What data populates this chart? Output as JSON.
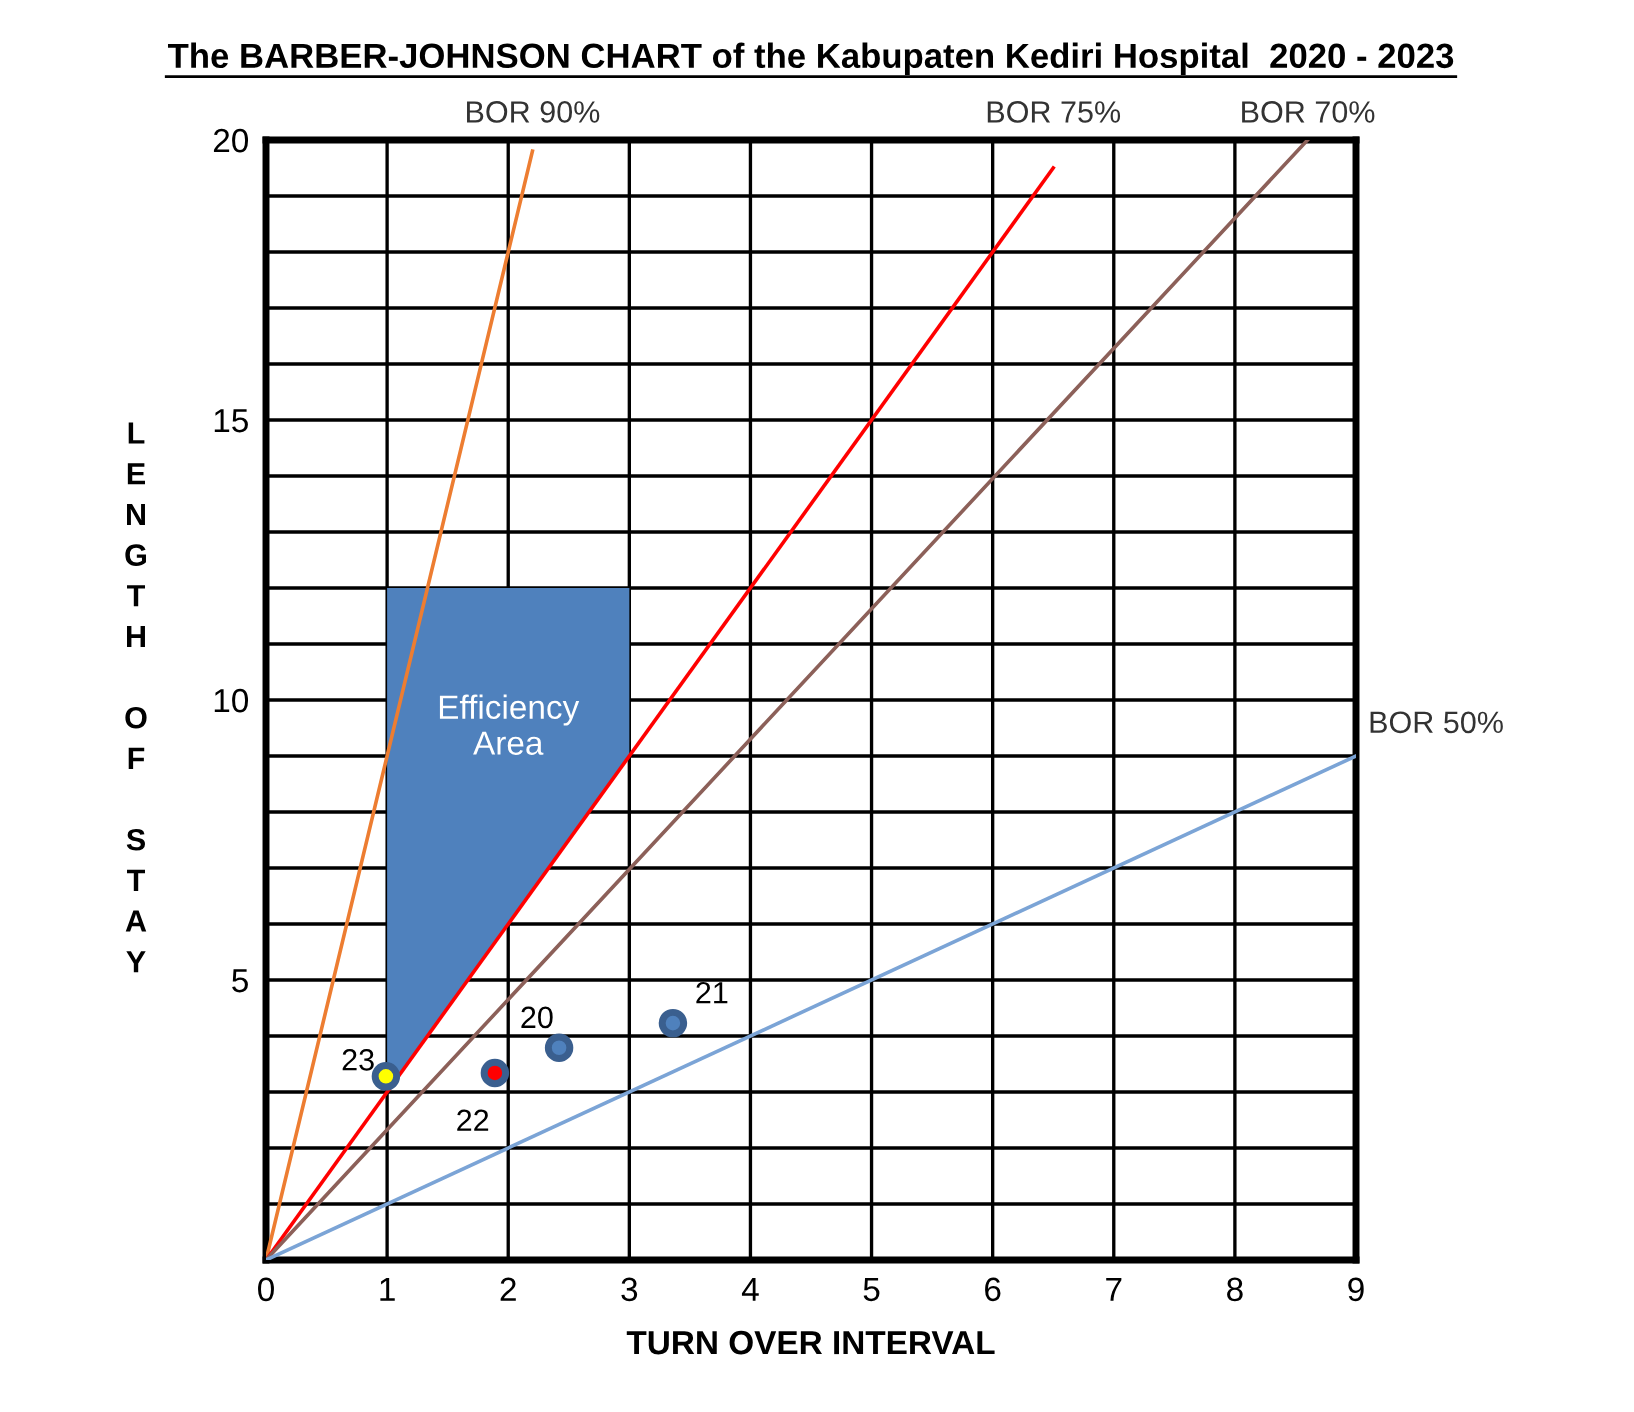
{
  "chart_data": {
    "type": "scatter",
    "title": "The BARBER-JOHNSON CHART of the Kabupaten Kediri Hospital  2020 - 2023",
    "xlabel": "TURN OVER INTERVAL",
    "ylabel": "LENGTH OF STAY",
    "xlim": [
      0,
      9
    ],
    "ylim": [
      0,
      20
    ],
    "xticks": [
      0,
      1,
      2,
      3,
      4,
      5,
      6,
      7,
      8,
      9
    ],
    "yticks": [
      {
        "value": 0,
        "label": null
      },
      {
        "value": 1,
        "label": null
      },
      {
        "value": 2,
        "label": null
      },
      {
        "value": 3,
        "label": null
      },
      {
        "value": 4,
        "label": null
      },
      5,
      {
        "value": 6,
        "label": null
      },
      {
        "value": 7,
        "label": null
      },
      {
        "value": 8,
        "label": null
      },
      {
        "value": 9,
        "label": null
      },
      10,
      {
        "value": 11,
        "label": null
      },
      {
        "value": 12,
        "label": null
      },
      {
        "value": 13,
        "label": null
      },
      {
        "value": 14,
        "label": null
      },
      15,
      {
        "value": 16,
        "label": null
      },
      {
        "value": 17,
        "label": null
      },
      {
        "value": 18,
        "label": null
      },
      {
        "value": 19,
        "label": null
      },
      20
    ],
    "grid": true,
    "legend": false,
    "series": [
      {
        "type": "area",
        "name": "Efficiency Area",
        "color": "#4f81bd",
        "x": [
          1,
          1,
          3,
          3
        ],
        "values": [
          3,
          12,
          12,
          9
        ]
      },
      {
        "type": "line",
        "name": "BOR 90%",
        "color": "#ed7d31",
        "x": [
          0,
          2.2
        ],
        "values": [
          0,
          19.8
        ]
      },
      {
        "type": "line",
        "name": "BOR 75%",
        "color": "#ff0000",
        "x": [
          0,
          6.5
        ],
        "values": [
          0,
          19.5
        ]
      },
      {
        "type": "line",
        "name": "BOR 70%",
        "color": "#8c6059",
        "x": [
          0,
          8.6
        ],
        "values": [
          0,
          20
        ]
      },
      {
        "type": "line",
        "name": "BOR 50%",
        "color": "#7ba4d6",
        "x": [
          0,
          9
        ],
        "values": [
          0,
          9
        ]
      },
      {
        "marker": "circle",
        "x": [
          2.42,
          3.36,
          1.89,
          0.99
        ],
        "values": [
          3.79,
          4.23,
          3.34,
          3.28
        ],
        "colors": [
          "#4f81bd",
          "#4f81bd",
          "#ff0000",
          "#ffff00"
        ]
      }
    ],
    "annotations": [
      {
        "text": "20",
        "x": 2.42,
        "y": 3.79
      },
      {
        "text": "21",
        "x": 3.36,
        "y": 4.23
      },
      {
        "text": "22",
        "x": 1.89,
        "y": 3.34
      },
      {
        "text": "23",
        "x": 0.99,
        "y": 3.28
      }
    ]
  }
}
